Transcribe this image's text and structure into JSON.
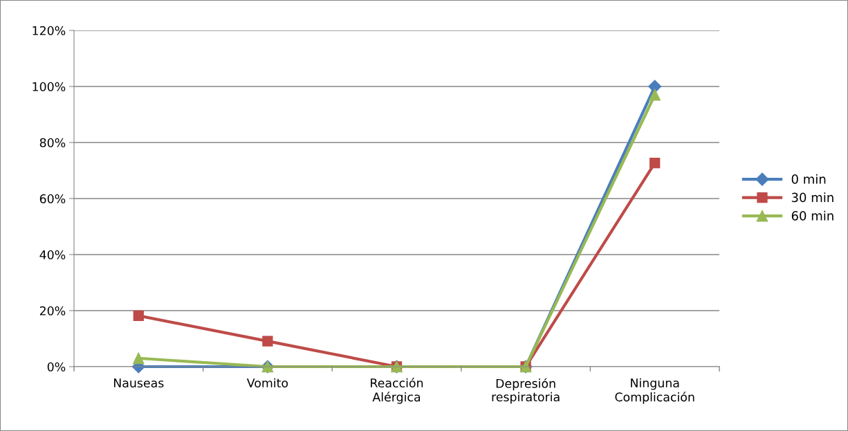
{
  "chart_data": {
    "type": "line",
    "categories": [
      "Nauseas",
      "Vomito",
      "Reacción\nAlérgica",
      "Depresión\nrespiratoria",
      "Ninguna\nComplicación"
    ],
    "series": [
      {
        "name": "0 min",
        "color": "#4a7ebb",
        "marker": "diamond",
        "values": [
          0,
          0,
          0,
          0,
          100
        ]
      },
      {
        "name": "30 min",
        "color": "#be4b48",
        "marker": "square",
        "values": [
          18.2,
          9.1,
          0,
          0,
          72.7
        ]
      },
      {
        "name": "60 min",
        "color": "#98b954",
        "marker": "triangle",
        "values": [
          3,
          0,
          0,
          0,
          97
        ]
      }
    ],
    "ylim": [
      0,
      120
    ],
    "yticks": [
      {
        "value": 0,
        "label": "0%"
      },
      {
        "value": 20,
        "label": "20%"
      },
      {
        "value": 40,
        "label": "40%"
      },
      {
        "value": 60,
        "label": "60%"
      },
      {
        "value": 80,
        "label": "80%"
      },
      {
        "value": 100,
        "label": "100%"
      },
      {
        "value": 120,
        "label": "120%"
      }
    ],
    "grid": "y",
    "legend": "right",
    "line_style": "solid"
  }
}
